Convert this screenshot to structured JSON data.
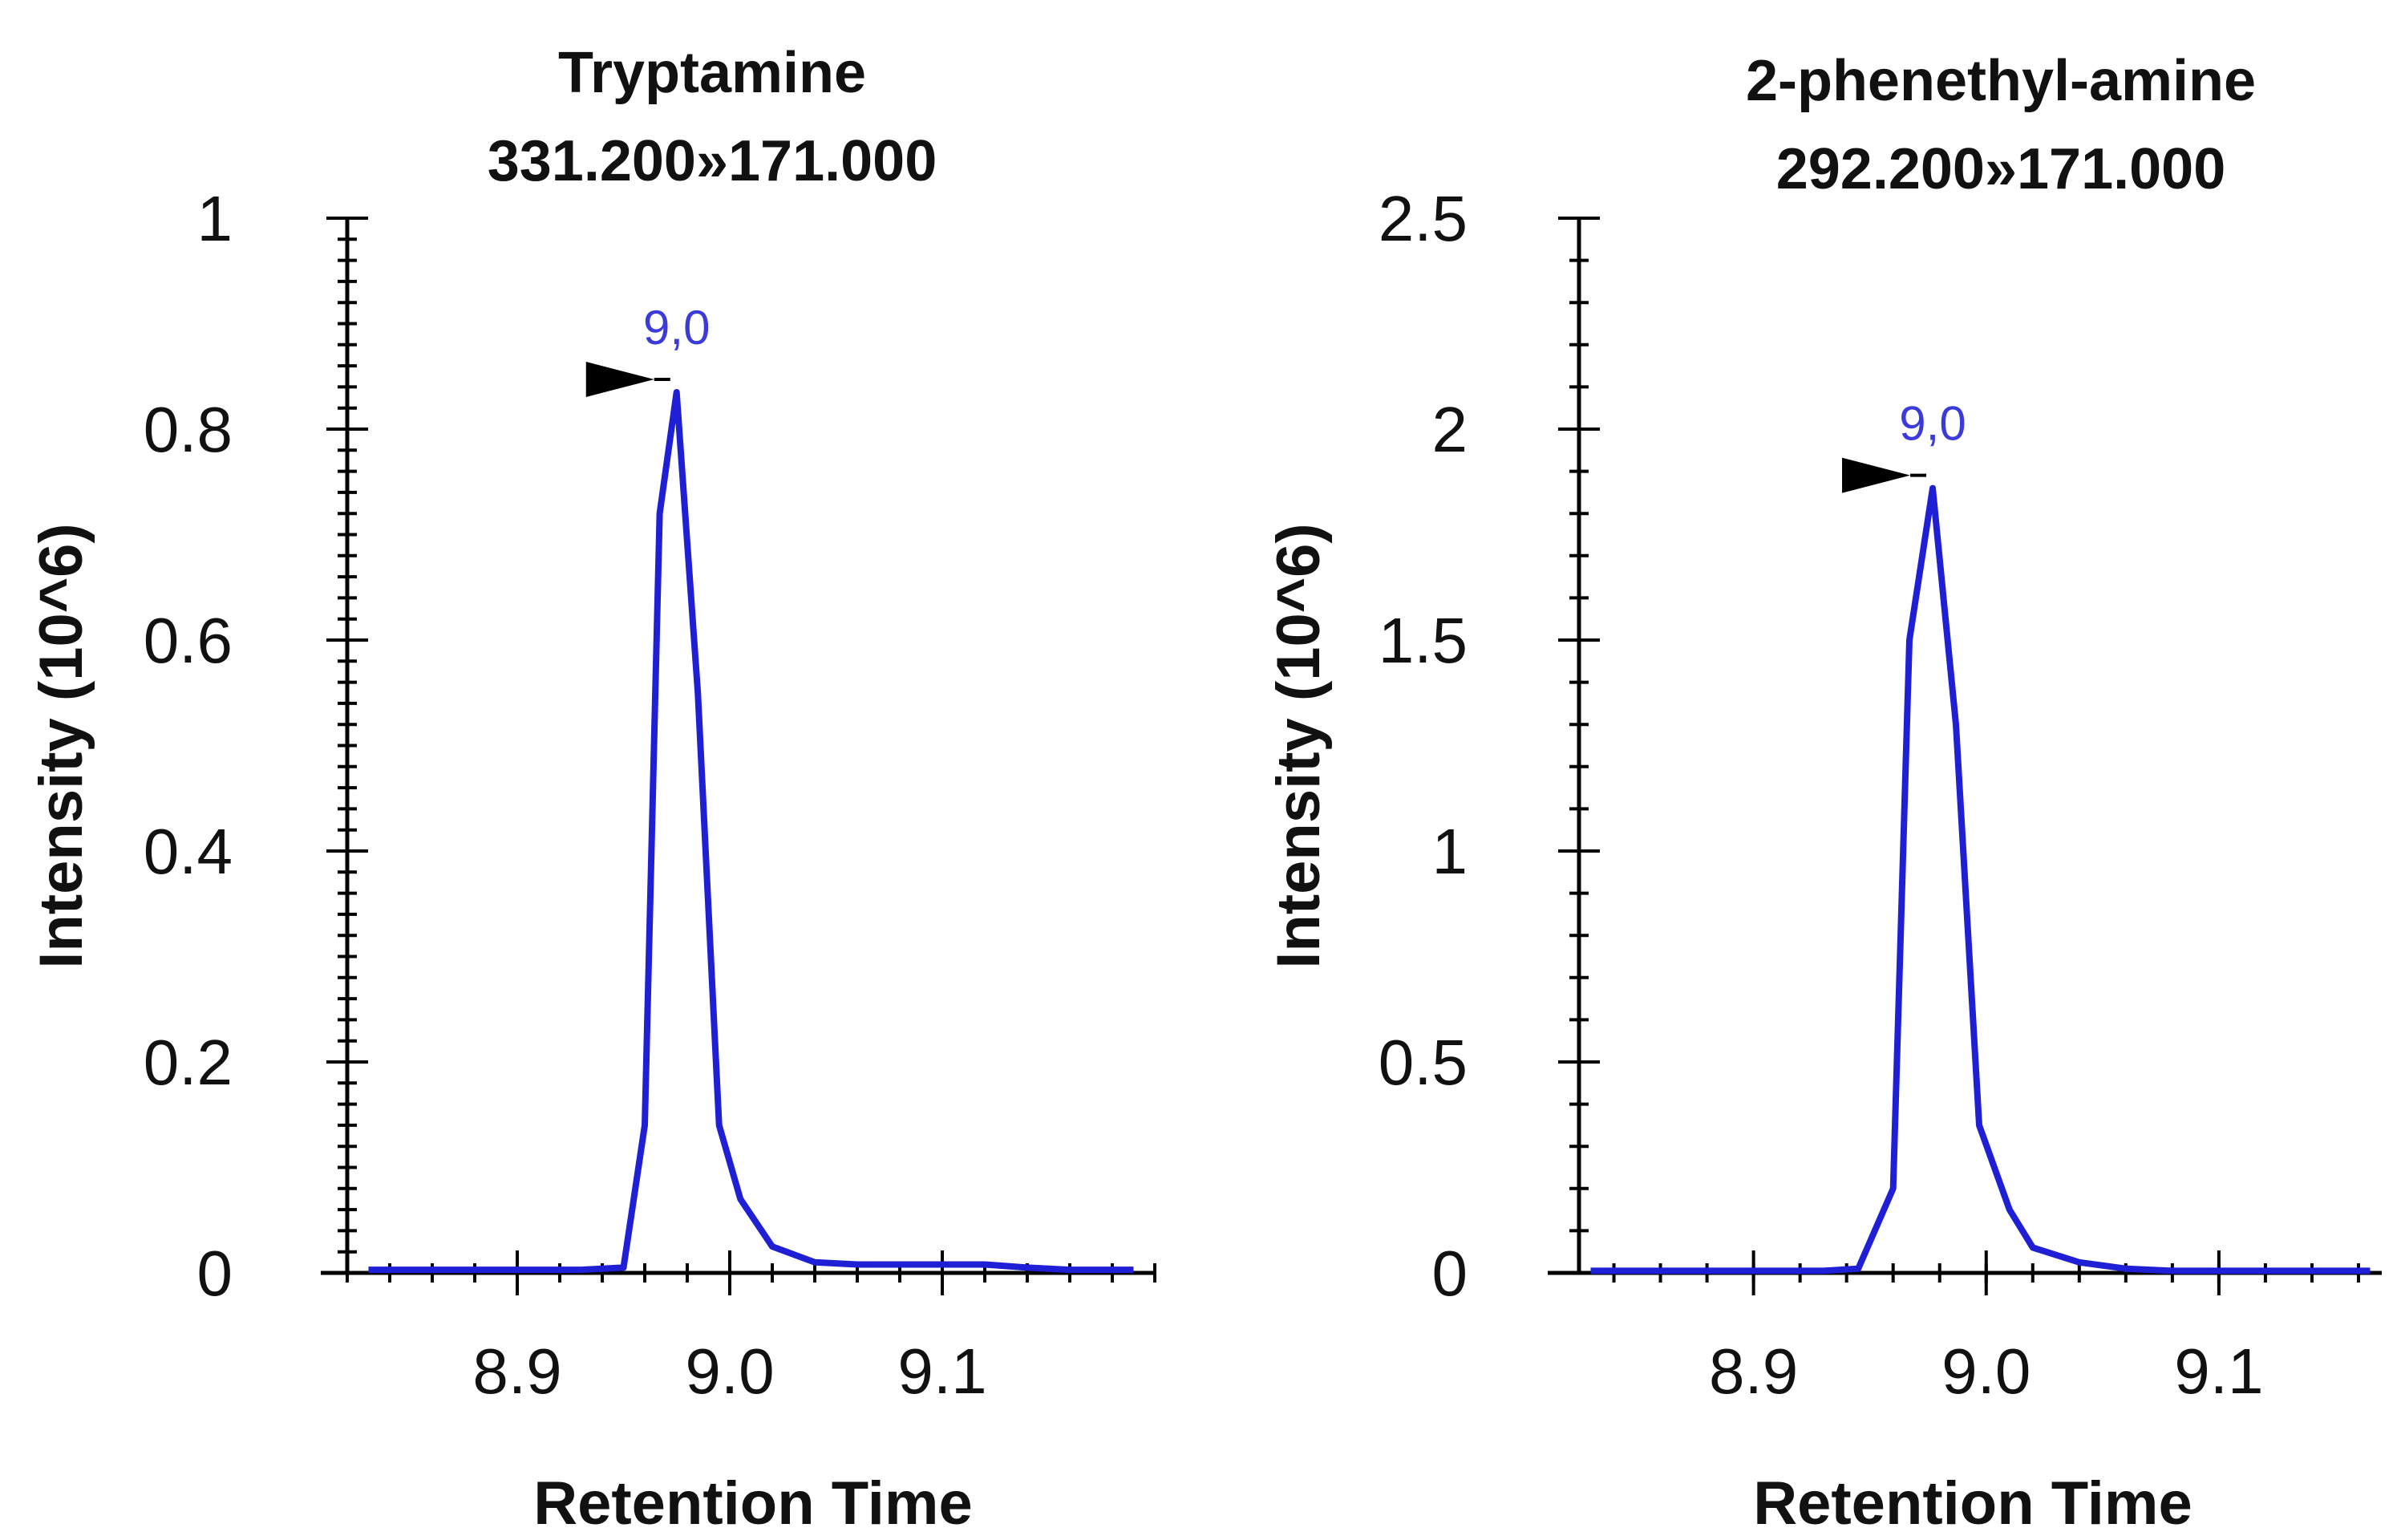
{
  "figure_colors": {
    "trace": "#1f1fd6",
    "peak_label": "#3b3bdb",
    "axis": "#000000",
    "marker": "#000000"
  },
  "chart_data": [
    {
      "type": "line",
      "title": "Tryptamine",
      "subtitle": "331.200»171.000",
      "xlabel": "Retention Time",
      "ylabel": "Intensity (10^6)",
      "xlim": [
        8.82,
        9.2
      ],
      "ylim": [
        0,
        1
      ],
      "x_ticks": [
        8.9,
        9.0,
        9.1
      ],
      "x_tick_labels": [
        "8.9",
        "9.0",
        "9.1"
      ],
      "y_ticks": [
        0,
        0.2,
        0.4,
        0.6,
        0.8,
        1
      ],
      "y_tick_labels": [
        "0",
        "0.2",
        "0.4",
        "0.6",
        "0.8",
        "1"
      ],
      "x_minor_step": 0.02,
      "y_minor_step": 0.02,
      "series": [
        {
          "name": "Tryptamine",
          "x": [
            8.83,
            8.85,
            8.87,
            8.89,
            8.91,
            8.93,
            8.95,
            8.96,
            8.967,
            8.975,
            8.985,
            8.995,
            9.005,
            9.02,
            9.04,
            9.06,
            9.08,
            9.1,
            9.12,
            9.14,
            9.16,
            9.19
          ],
          "y": [
            0.003,
            0.003,
            0.003,
            0.003,
            0.003,
            0.003,
            0.005,
            0.14,
            0.72,
            0.835,
            0.55,
            0.14,
            0.07,
            0.025,
            0.01,
            0.008,
            0.008,
            0.008,
            0.008,
            0.005,
            0.003,
            0.003
          ]
        }
      ],
      "peak": {
        "label": "9,0",
        "x": 8.975,
        "y": 0.835
      }
    },
    {
      "type": "line",
      "title": "2-phenethyl-amine",
      "subtitle": "292.200»171.000",
      "xlabel": "Retention Time",
      "ylabel": "Intensity (10^6)",
      "xlim": [
        8.825,
        9.17
      ],
      "ylim": [
        0,
        2.5
      ],
      "x_ticks": [
        8.9,
        9.0,
        9.1
      ],
      "x_tick_labels": [
        "8.9",
        "9.0",
        "9.1"
      ],
      "y_ticks": [
        0,
        0.5,
        1,
        1.5,
        2,
        2.5
      ],
      "y_tick_labels": [
        "0",
        "0.5",
        "1",
        "1.5",
        "2",
        "2.5"
      ],
      "x_minor_step": 0.02,
      "y_minor_step": 0.1,
      "series": [
        {
          "name": "2-phenethyl-amine",
          "x": [
            8.83,
            8.85,
            8.87,
            8.89,
            8.91,
            8.93,
            8.945,
            8.96,
            8.967,
            8.977,
            8.987,
            8.997,
            9.01,
            9.02,
            9.04,
            9.06,
            9.08,
            9.1,
            9.12,
            9.14,
            9.165
          ],
          "y": [
            0.005,
            0.005,
            0.005,
            0.005,
            0.005,
            0.005,
            0.01,
            0.2,
            1.5,
            1.86,
            1.3,
            0.35,
            0.15,
            0.06,
            0.025,
            0.01,
            0.005,
            0.005,
            0.005,
            0.005,
            0.005
          ]
        }
      ],
      "peak": {
        "label": "9,0",
        "x": 8.977,
        "y": 1.86
      }
    }
  ]
}
